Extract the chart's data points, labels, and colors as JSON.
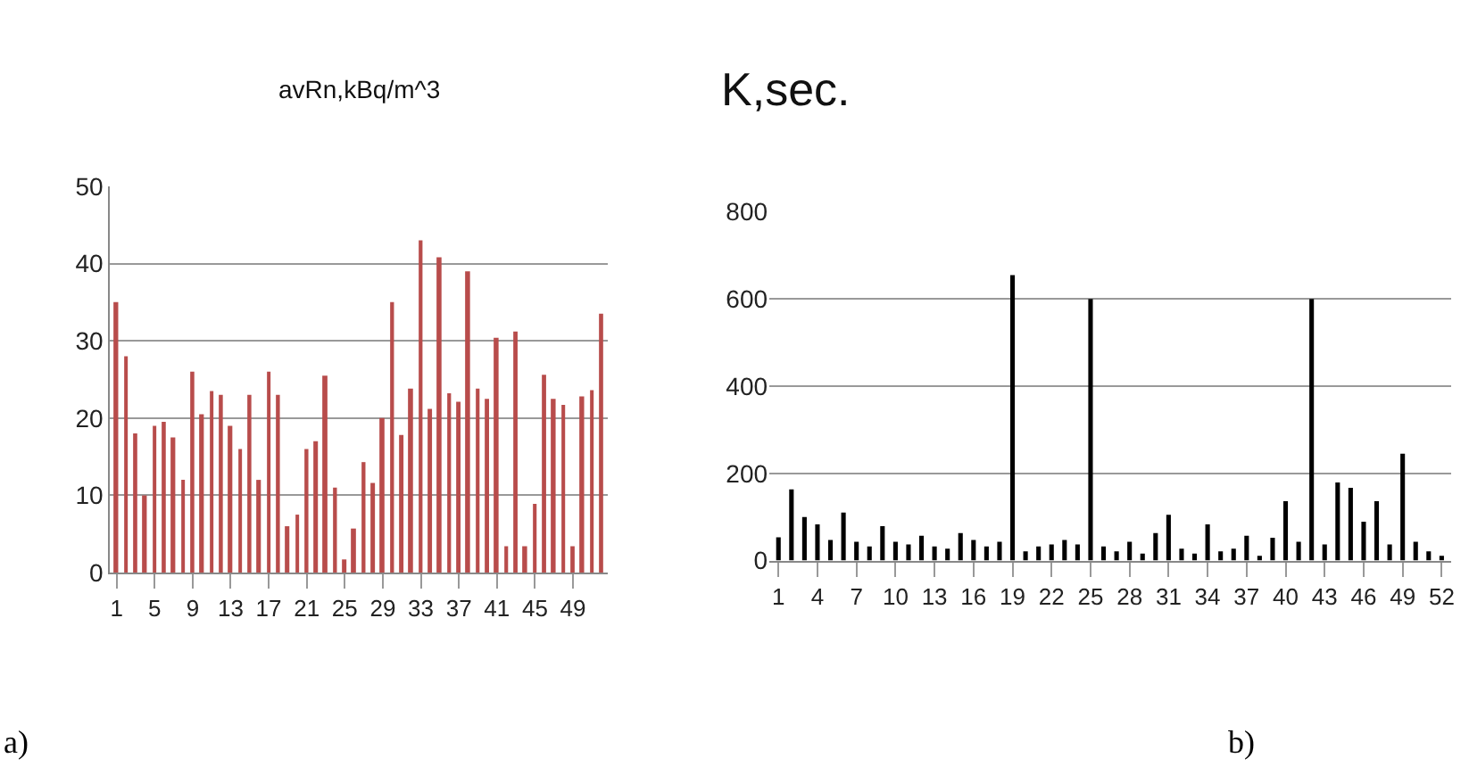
{
  "chart_data": [
    {
      "type": "bar",
      "title": "avRn,kBq/m^3",
      "categories": [
        "1",
        null,
        null,
        null,
        "5",
        null,
        null,
        null,
        "9",
        null,
        null,
        null,
        "13",
        null,
        null,
        null,
        "17",
        null,
        null,
        null,
        "21",
        null,
        null,
        null,
        "25",
        null,
        null,
        null,
        "29",
        null,
        null,
        null,
        "33",
        null,
        null,
        null,
        "37",
        null,
        null,
        null,
        "41",
        null,
        null,
        null,
        "45",
        null,
        null,
        null,
        "49",
        null,
        null,
        null
      ],
      "values": [
        35,
        28,
        18,
        10,
        19,
        19.5,
        17.5,
        12,
        26,
        20.5,
        23.5,
        23,
        19,
        16,
        23,
        12,
        26,
        23,
        6,
        7.5,
        16,
        17,
        25.5,
        11,
        1.7,
        5.7,
        14.3,
        11.6,
        20,
        35,
        17.8,
        23.8,
        43,
        21.2,
        40.8,
        23.2,
        22.1,
        39,
        23.8,
        22.5,
        30.4,
        3.4,
        31.2,
        3.4,
        8.9,
        25.6,
        22.5,
        21.7,
        3.4,
        22.8,
        23.6,
        33.5
      ],
      "color": "#b84c4b",
      "ylim": [
        0,
        50
      ],
      "yticks": [
        0,
        10,
        20,
        30,
        40,
        50
      ],
      "grid": "y",
      "annotations": [
        "a)"
      ]
    },
    {
      "type": "bar",
      "title": "K,sec.",
      "categories": [
        "1",
        null,
        null,
        "4",
        null,
        null,
        "7",
        null,
        null,
        "10",
        null,
        null,
        "13",
        null,
        null,
        "16",
        null,
        null,
        "19",
        null,
        null,
        "22",
        null,
        null,
        "25",
        null,
        null,
        "28",
        null,
        null,
        "31",
        null,
        null,
        "34",
        null,
        null,
        "37",
        null,
        null,
        "40",
        null,
        null,
        "43",
        null,
        null,
        "46",
        null,
        null,
        "49",
        null,
        null,
        "52"
      ],
      "values": [
        53,
        163,
        100,
        83,
        47,
        110,
        43,
        32,
        79,
        43,
        37,
        57,
        32,
        27,
        63,
        47,
        32,
        43,
        655,
        21,
        32,
        37,
        47,
        37,
        600,
        32,
        21,
        43,
        16,
        63,
        105,
        27,
        16,
        83,
        21,
        27,
        57,
        11,
        52,
        136,
        43,
        600,
        37,
        179,
        167,
        89,
        136,
        37,
        245,
        43,
        21,
        11
      ],
      "color": "#000000",
      "ylim": [
        0,
        800
      ],
      "yticks": [
        0,
        200,
        400,
        600,
        800
      ],
      "grid": "y",
      "annotations": [
        "b)"
      ]
    }
  ]
}
